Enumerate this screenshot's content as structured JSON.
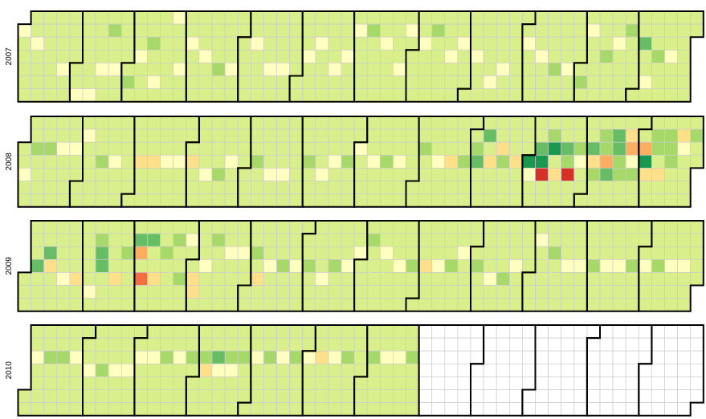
{
  "chart_data": {
    "type": "heatmap",
    "title": "",
    "years": [
      "2007",
      "2008",
      "2009",
      "2010"
    ],
    "week_start": "Sunday",
    "last_day_with_data": "2010-07-31",
    "palette": [
      "#a50026",
      "#d73027",
      "#f46d43",
      "#fdae61",
      "#fee08b",
      "#ffffbf",
      "#d9ef8b",
      "#a6d96a",
      "#66bd63",
      "#1a9850",
      "#006837"
    ],
    "default_level": 6,
    "empty_color": "#ffffff",
    "cell_border_color": "#cccccc",
    "month_border_color": "#000000",
    "level_overrides": {
      "2007-01-01": 5,
      "2007-01-09": 5,
      "2007-01-25": 5,
      "2007-02-03": 5,
      "2007-02-10": 5,
      "2007-02-15": 5,
      "2007-02-19": 7,
      "2007-02-22": 5,
      "2007-03-02": 7,
      "2007-03-07": 5,
      "2007-03-13": 7,
      "2007-03-16": 5,
      "2007-03-25": 5,
      "2007-03-29": 5,
      "2007-04-03": 5,
      "2007-04-11": 5,
      "2007-04-19": 7,
      "2007-04-26": 5,
      "2007-05-08": 5,
      "2007-05-17": 5,
      "2007-05-24": 5,
      "2007-06-06": 5,
      "2007-06-12": 5,
      "2007-06-21": 5,
      "2007-06-27": 5,
      "2007-07-02": 5,
      "2007-07-09": 7,
      "2007-07-17": 5,
      "2007-07-26": 5,
      "2007-07-30": 5,
      "2007-08-07": 5,
      "2007-08-13": 7,
      "2007-08-22": 5,
      "2007-08-28": 5,
      "2007-09-05": 5,
      "2007-09-14": 5,
      "2007-09-20": 5,
      "2007-10-02": 5,
      "2007-10-10": 5,
      "2007-10-18": 7,
      "2007-10-25": 5,
      "2007-11-02": 7,
      "2007-11-05": 5,
      "2007-11-14": 7,
      "2007-11-20": 5,
      "2007-11-26": 7,
      "2007-12-04": 8,
      "2007-12-07": 5,
      "2007-12-12": 7,
      "2007-12-19": 5,
      "2008-01-03": 5,
      "2008-01-08": 7,
      "2008-01-15": 7,
      "2008-01-22": 5,
      "2008-01-29": 5,
      "2008-02-04": 5,
      "2008-02-13": 7,
      "2008-02-20": 5,
      "2008-03-05": 4,
      "2008-03-12": 4,
      "2008-03-19": 5,
      "2008-03-26": 5,
      "2008-04-02": 4,
      "2008-04-10": 5,
      "2008-04-17": 7,
      "2008-04-23": 5,
      "2008-05-07": 7,
      "2008-05-15": 5,
      "2008-05-22": 5,
      "2008-06-04": 7,
      "2008-06-12": 5,
      "2008-06-18": 5,
      "2008-06-25": 7,
      "2008-07-01": 5,
      "2008-07-09": 5,
      "2008-07-16": 7,
      "2008-07-23": 5,
      "2008-08-05": 7,
      "2008-08-13": 5,
      "2008-08-20": 4,
      "2008-08-27": 7,
      "2008-09-02": 7,
      "2008-09-03": 8,
      "2008-09-08": 8,
      "2008-09-10": 4,
      "2008-09-16": 4,
      "2008-09-17": 7,
      "2008-09-24": 4,
      "2008-10-01": 9,
      "2008-10-02": 5,
      "2008-10-07": 8,
      "2008-10-08": 9,
      "2008-10-09": 1,
      "2008-10-13": 7,
      "2008-10-14": 9,
      "2008-10-16": 4,
      "2008-10-21": 8,
      "2008-10-22": 7,
      "2008-10-23": 1,
      "2008-10-28": 7,
      "2008-10-29": 5,
      "2008-11-04": 8,
      "2008-11-05": 4,
      "2008-11-06": 7,
      "2008-11-10": 7,
      "2008-11-11": 7,
      "2008-11-12": 3,
      "2008-11-13": 8,
      "2008-11-17": 8,
      "2008-11-18": 8,
      "2008-11-19": 7,
      "2008-11-20": 7,
      "2008-11-24": 4,
      "2008-11-25": 3,
      "2008-11-26": 5,
      "2008-11-27": 7,
      "2008-12-02": 3,
      "2008-12-03": 9,
      "2008-12-04": 4,
      "2008-12-08": 7,
      "2008-12-09": 7,
      "2008-12-11": 4,
      "2008-12-15": 7,
      "2008-12-16": 7,
      "2008-12-17": 7,
      "2008-12-22": 4,
      "2008-12-23": 5,
      "2008-12-29": 7,
      "2009-01-07": 8,
      "2009-01-13": 8,
      "2009-01-14": 4,
      "2009-01-22": 5,
      "2009-01-29": 4,
      "2009-02-06": 5,
      "2009-02-09": 7,
      "2009-02-10": 8,
      "2009-02-11": 8,
      "2009-02-19": 4,
      "2009-02-24": 7,
      "2009-03-02": 8,
      "2009-03-03": 3,
      "2009-03-05": 2,
      "2009-03-09": 8,
      "2009-03-12": 4,
      "2009-03-17": 7,
      "2009-03-23": 7,
      "2009-03-26": 7,
      "2009-03-30": 5,
      "2009-04-02": 4,
      "2009-04-03": 4,
      "2009-04-08": 5,
      "2009-04-13": 7,
      "2009-04-21": 5,
      "2009-04-28": 5,
      "2009-05-05": 7,
      "2009-05-07": 4,
      "2009-05-13": 5,
      "2009-05-20": 7,
      "2009-05-27": 5,
      "2009-06-03": 7,
      "2009-06-11": 5,
      "2009-06-17": 7,
      "2009-06-24": 5,
      "2009-06-30": 5,
      "2009-07-06": 7,
      "2009-07-14": 5,
      "2009-07-22": 5,
      "2009-07-29": 7,
      "2009-08-05": 4,
      "2009-08-12": 5,
      "2009-08-19": 7,
      "2009-08-25": 5,
      "2009-09-02": 7,
      "2009-09-10": 5,
      "2009-09-17": 7,
      "2009-09-23": 5,
      "2009-10-05": 5,
      "2009-10-13": 7,
      "2009-10-21": 5,
      "2009-10-28": 5,
      "2009-11-04": 7,
      "2009-11-11": 5,
      "2009-11-18": 5,
      "2009-11-25": 7,
      "2009-12-02": 5,
      "2009-12-09": 7,
      "2009-12-16": 5,
      "2009-12-23": 5,
      "2010-01-05": 5,
      "2010-01-12": 7,
      "2010-01-19": 7,
      "2010-01-26": 5,
      "2010-02-03": 5,
      "2010-02-10": 7,
      "2010-02-17": 5,
      "2010-02-24": 5,
      "2010-03-02": 5,
      "2010-03-09": 5,
      "2010-03-16": 7,
      "2010-03-23": 5,
      "2010-03-30": 7,
      "2010-04-06": 7,
      "2010-04-07": 4,
      "2010-04-13": 8,
      "2010-04-14": 5,
      "2010-04-20": 7,
      "2010-04-21": 5,
      "2010-04-27": 7,
      "2010-05-04": 5,
      "2010-05-11": 7,
      "2010-05-18": 5,
      "2010-05-25": 7,
      "2010-06-01": 5,
      "2010-06-08": 4,
      "2010-06-15": 5,
      "2010-06-22": 7,
      "2010-07-06": 7,
      "2010-07-13": 5,
      "2010-07-20": 5,
      "2010-07-27": 7
    }
  }
}
